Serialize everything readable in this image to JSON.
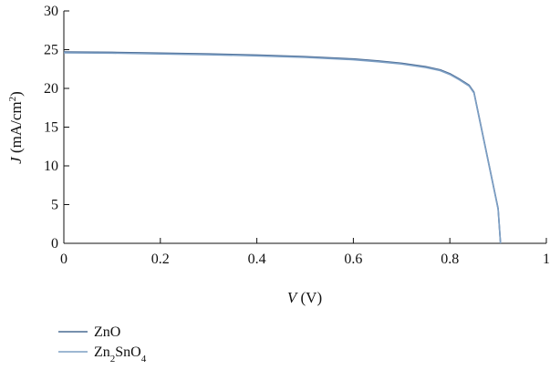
{
  "chart_data": {
    "type": "line",
    "title": "",
    "xlabel": {
      "var": "V",
      "unit": "(V)"
    },
    "ylabel": {
      "var": "J",
      "unit_pre": "(mA/cm",
      "unit_sup": "2",
      "unit_post": ")"
    },
    "xlim": [
      0,
      1
    ],
    "ylim": [
      0,
      30
    ],
    "xticks": [
      0,
      0.2,
      0.4,
      0.6,
      0.8,
      1
    ],
    "xtick_labels": [
      "0",
      "0.2",
      "0.4",
      "0.6",
      "0.8",
      "1"
    ],
    "yticks": [
      0,
      5,
      10,
      15,
      20,
      25,
      30
    ],
    "ytick_labels": [
      "0",
      "5",
      "10",
      "15",
      "20",
      "25",
      "30"
    ],
    "grid": false,
    "legend_position": "bottom-left",
    "series": [
      {
        "name": "ZnO",
        "legend_parts": [
          {
            "t": "ZnO",
            "sub": false
          }
        ],
        "color": "#4a6b94",
        "x": [
          0,
          0.1,
          0.2,
          0.3,
          0.4,
          0.5,
          0.6,
          0.65,
          0.7,
          0.75,
          0.78,
          0.8,
          0.82,
          0.84,
          0.85,
          0.86,
          0.88,
          0.9,
          0.905
        ],
        "y": [
          24.7,
          24.65,
          24.55,
          24.45,
          24.3,
          24.1,
          23.8,
          23.55,
          23.25,
          22.8,
          22.4,
          21.9,
          21.2,
          20.4,
          19.5,
          16.5,
          10.5,
          4.5,
          0
        ]
      },
      {
        "name": "Zn2SnO4",
        "legend_parts": [
          {
            "t": "Zn",
            "sub": false
          },
          {
            "t": "2",
            "sub": true
          },
          {
            "t": "SnO",
            "sub": false
          },
          {
            "t": "4",
            "sub": true
          }
        ],
        "color": "#7d9fc4",
        "x": [
          0,
          0.1,
          0.2,
          0.3,
          0.4,
          0.5,
          0.6,
          0.65,
          0.7,
          0.75,
          0.78,
          0.8,
          0.82,
          0.84,
          0.85,
          0.86,
          0.88,
          0.9,
          0.905
        ],
        "y": [
          24.6,
          24.55,
          24.45,
          24.35,
          24.2,
          24.0,
          23.7,
          23.45,
          23.15,
          22.7,
          22.3,
          21.8,
          21.1,
          20.3,
          19.4,
          16.4,
          10.4,
          4.4,
          0
        ]
      }
    ]
  }
}
